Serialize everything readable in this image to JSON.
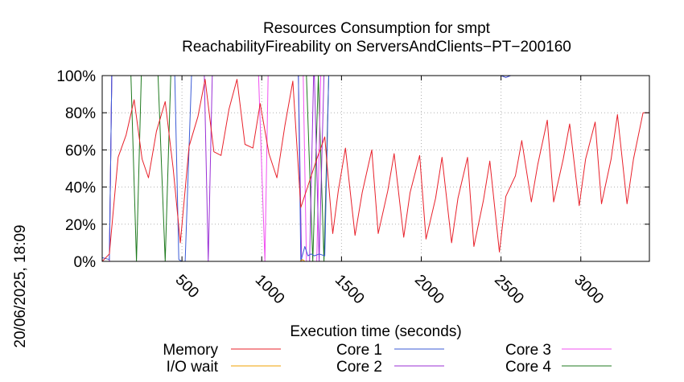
{
  "chart_data": {
    "type": "line",
    "title": "Resources Consumption for smpt",
    "subtitle": "ReachabilityFireability on ServersAndClients−PT−200160",
    "xlabel": "Execution time (seconds)",
    "ylabel": "",
    "side_label": "20/06/2025, 18:09",
    "xlim": [
      0,
      3430
    ],
    "ylim": [
      0,
      100
    ],
    "x_ticks": [
      500,
      1000,
      1500,
      2000,
      2500,
      3000
    ],
    "y_ticks": [
      0,
      20,
      40,
      60,
      80,
      100
    ],
    "y_tick_labels": [
      "0%",
      "20%",
      "40%",
      "60%",
      "80%",
      "100%"
    ],
    "grid": true,
    "legend_position": "bottom",
    "series": [
      {
        "name": "Memory",
        "color": "#e8202a",
        "x": [
          0,
          45,
          100,
          150,
          200,
          250,
          290,
          340,
          395,
          445,
          490,
          545,
          600,
          645,
          700,
          745,
          795,
          845,
          895,
          945,
          990,
          1045,
          1095,
          1145,
          1195,
          1245,
          1295,
          1345,
          1395,
          1445,
          1480,
          1525,
          1585,
          1630,
          1690,
          1730,
          1790,
          1830,
          1890,
          1930,
          1990,
          2030,
          2090,
          2130,
          2190,
          2230,
          2290,
          2330,
          2390,
          2430,
          2490,
          2530,
          2590,
          2630,
          2690,
          2730,
          2790,
          2830,
          2890,
          2930,
          2990,
          3030,
          3090,
          3130,
          3190,
          3230,
          3290,
          3330,
          3390,
          3430
        ],
        "y": [
          0,
          4,
          56,
          68,
          87,
          55,
          45,
          70,
          86,
          50,
          10,
          62,
          78,
          98,
          59,
          57,
          82,
          98,
          63,
          61,
          85,
          58,
          45,
          73,
          97,
          29,
          42,
          55,
          67,
          15,
          38,
          61,
          14,
          37,
          60,
          15,
          38,
          58,
          13,
          37,
          57,
          12,
          34,
          56,
          10,
          34,
          56,
          8,
          33,
          54,
          5,
          35,
          46,
          65,
          32,
          52,
          76,
          32,
          55,
          74,
          30,
          55,
          75,
          31,
          55,
          79,
          31,
          55,
          80,
          80
        ]
      },
      {
        "name": "I/O wait",
        "color": "#f0a000",
        "x": [
          0,
          1240,
          1255,
          1270,
          1330,
          1400,
          1410,
          3430
        ],
        "y": [
          0,
          0,
          1,
          0,
          0,
          0,
          0,
          0
        ]
      },
      {
        "name": "Core 1",
        "color": "#3b5bd6",
        "x": [
          0,
          45,
          60,
          100,
          270,
          400,
          455,
          480,
          500,
          520,
          560,
          580,
          600,
          640,
          680,
          1230,
          1245,
          1270,
          1290,
          1310,
          1330,
          1360,
          1395,
          1420,
          1450,
          1500,
          2500,
          2530,
          2560,
          3430
        ],
        "y": [
          2,
          1,
          100,
          100,
          100,
          100,
          100,
          1,
          0,
          0,
          100,
          100,
          100,
          100,
          100,
          100,
          0,
          8,
          3,
          4,
          3,
          4,
          3,
          100,
          100,
          100,
          100,
          99,
          100,
          100
        ]
      },
      {
        "name": "Core 2",
        "color": "#9a2fd6",
        "x": [
          0,
          45,
          60,
          100,
          640,
          665,
          690,
          1230,
          1250,
          1270,
          1300,
          1325,
          1330,
          1360,
          1390,
          1410,
          1430,
          1450,
          2500,
          2530,
          2560,
          3430
        ],
        "y": [
          0,
          0,
          100,
          100,
          100,
          0,
          100,
          100,
          0,
          0,
          0,
          100,
          100,
          0,
          100,
          100,
          100,
          100,
          100,
          99,
          100,
          100
        ]
      },
      {
        "name": "Core 3",
        "color": "#f050f0",
        "x": [
          0,
          45,
          60,
          980,
          1020,
          1040,
          1080,
          1260,
          1280,
          1320,
          1345,
          1370,
          1395,
          3430
        ],
        "y": [
          0,
          0,
          100,
          100,
          0,
          100,
          100,
          100,
          0,
          0,
          0,
          100,
          100,
          100
        ]
      },
      {
        "name": "Core 4",
        "color": "#1f7a1f",
        "x": [
          0,
          45,
          60,
          180,
          215,
          245,
          350,
          395,
          430,
          1280,
          1320,
          1355,
          1390,
          1420,
          3430
        ],
        "y": [
          0,
          0,
          100,
          100,
          0,
          100,
          100,
          0,
          100,
          100,
          0,
          100,
          0,
          100,
          100
        ]
      }
    ]
  }
}
